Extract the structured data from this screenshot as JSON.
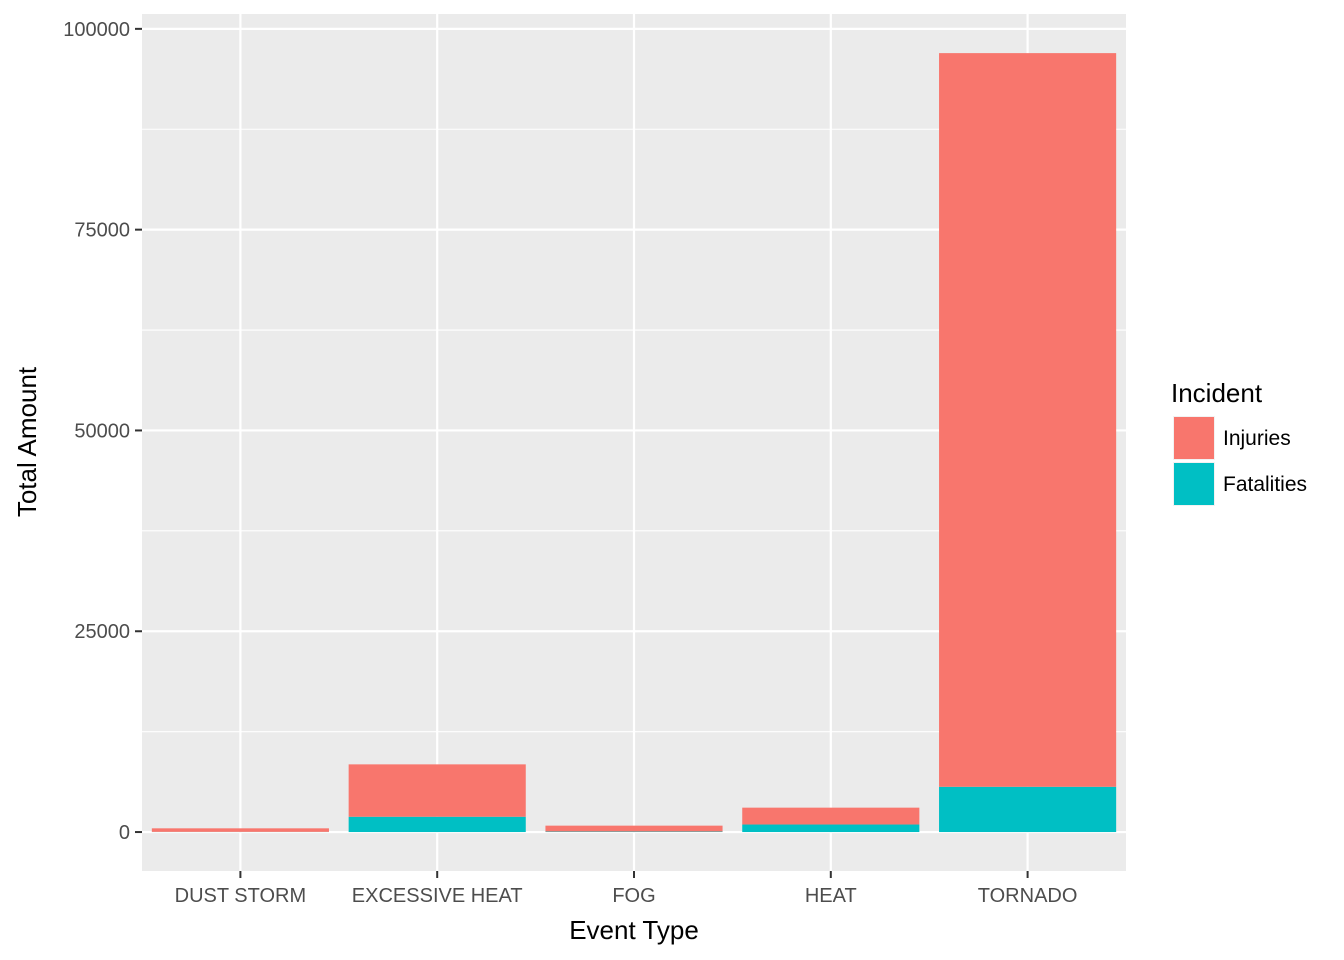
{
  "chart_data": {
    "type": "bar",
    "stacked": true,
    "title": "",
    "xlabel": "Event Type",
    "ylabel": "Total Amount",
    "categories": [
      "DUST STORM",
      "EXCESSIVE HEAT",
      "FOG",
      "HEAT",
      "TORNADO"
    ],
    "series": [
      {
        "name": "Injuries",
        "color": "#F8766D",
        "values": [
          440,
          6525,
          734,
          2100,
          91346
        ]
      },
      {
        "name": "Fatalities",
        "color": "#00BFC4",
        "values": [
          22,
          1903,
          62,
          937,
          5633
        ]
      }
    ],
    "ylim": [
      -4850,
      101850
    ],
    "yticks": [
      0,
      25000,
      50000,
      75000,
      100000
    ],
    "ytick_labels": [
      "0",
      "25000",
      "50000",
      "75000",
      "100000"
    ],
    "grid": true,
    "legend": {
      "title": "Incident",
      "placement": "right",
      "entries": [
        "Injuries",
        "Fatalities"
      ]
    },
    "colors": {
      "panel": "#EBEBEB",
      "grid": "#FFFFFF"
    }
  }
}
